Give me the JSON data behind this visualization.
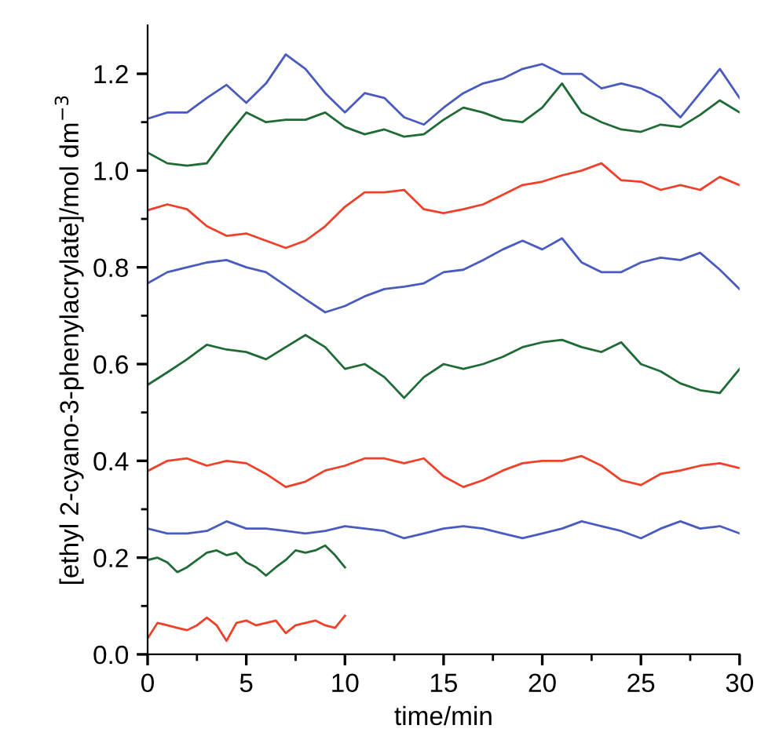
{
  "chart_data": {
    "type": "line",
    "xlabel": "time/min",
    "ylabel": "[ethyl 2-cyano-3-phenylacrylate]/mol dm$^{−3}$",
    "x": [
      0,
      1,
      2,
      3,
      4,
      5,
      6,
      7,
      8,
      9,
      10,
      11,
      12,
      13,
      14,
      15,
      16,
      17,
      18,
      19,
      20,
      21,
      22,
      23,
      24,
      25,
      26,
      27,
      28,
      29,
      30
    ],
    "series": [
      {
        "color": "#4a5bbf",
        "values": [
          1.107,
          1.12,
          1.12,
          1.15,
          1.177,
          1.14,
          1.18,
          1.24,
          1.21,
          1.16,
          1.12,
          1.16,
          1.15,
          1.11,
          1.095,
          1.13,
          1.16,
          1.18,
          1.19,
          1.21,
          1.22,
          1.2,
          1.2,
          1.17,
          1.18,
          1.17,
          1.15,
          1.11,
          1.16,
          1.21,
          1.15
        ]
      },
      {
        "color": "#1f6b35",
        "values": [
          1.037,
          1.015,
          1.01,
          1.015,
          1.07,
          1.12,
          1.1,
          1.105,
          1.105,
          1.12,
          1.09,
          1.075,
          1.085,
          1.07,
          1.075,
          1.105,
          1.13,
          1.12,
          1.105,
          1.1,
          1.13,
          1.18,
          1.12,
          1.1,
          1.085,
          1.08,
          1.095,
          1.09,
          1.115,
          1.145,
          1.12
        ]
      },
      {
        "color": "#f0402a",
        "values": [
          0.918,
          0.93,
          0.92,
          0.885,
          0.865,
          0.87,
          0.855,
          0.84,
          0.855,
          0.885,
          0.925,
          0.955,
          0.955,
          0.96,
          0.92,
          0.912,
          0.92,
          0.93,
          0.95,
          0.97,
          0.977,
          0.99,
          1.0,
          1.015,
          0.98,
          0.977,
          0.96,
          0.97,
          0.96,
          0.987,
          0.97
        ]
      },
      {
        "color": "#4a5bbf",
        "values": [
          0.767,
          0.79,
          0.8,
          0.81,
          0.815,
          0.8,
          0.79,
          0.762,
          0.734,
          0.707,
          0.72,
          0.74,
          0.755,
          0.76,
          0.767,
          0.79,
          0.795,
          0.815,
          0.837,
          0.855,
          0.837,
          0.86,
          0.81,
          0.79,
          0.79,
          0.81,
          0.82,
          0.815,
          0.83,
          0.795,
          0.755
        ]
      },
      {
        "color": "#1f6b35",
        "values": [
          0.557,
          0.583,
          0.61,
          0.64,
          0.63,
          0.625,
          0.61,
          0.635,
          0.66,
          0.635,
          0.59,
          0.6,
          0.573,
          0.53,
          0.573,
          0.6,
          0.59,
          0.6,
          0.615,
          0.635,
          0.645,
          0.65,
          0.635,
          0.625,
          0.645,
          0.6,
          0.585,
          0.56,
          0.546,
          0.54,
          0.59
        ]
      },
      {
        "color": "#f0402a",
        "values": [
          0.379,
          0.4,
          0.405,
          0.39,
          0.4,
          0.395,
          0.373,
          0.346,
          0.357,
          0.38,
          0.39,
          0.405,
          0.405,
          0.395,
          0.405,
          0.368,
          0.346,
          0.36,
          0.38,
          0.395,
          0.4,
          0.4,
          0.41,
          0.39,
          0.36,
          0.35,
          0.373,
          0.38,
          0.39,
          0.395,
          0.385
        ]
      },
      {
        "color": "#4a5bbf",
        "values": [
          0.26,
          0.25,
          0.25,
          0.255,
          0.275,
          0.26,
          0.26,
          0.255,
          0.25,
          0.255,
          0.265,
          0.26,
          0.255,
          0.24,
          0.25,
          0.26,
          0.265,
          0.26,
          0.25,
          0.24,
          0.25,
          0.26,
          0.275,
          0.265,
          0.255,
          0.24,
          0.26,
          0.275,
          0.26,
          0.265,
          0.25
        ]
      },
      {
        "color": "#1f6b35",
        "x": [
          0,
          0.5,
          1,
          1.5,
          2,
          2.5,
          3,
          3.5,
          4,
          4.5,
          5,
          5.5,
          6,
          6.5,
          7,
          7.5,
          8,
          8.5,
          9,
          9.5,
          10
        ],
        "values": [
          0.195,
          0.2,
          0.19,
          0.17,
          0.18,
          0.195,
          0.21,
          0.215,
          0.205,
          0.21,
          0.19,
          0.18,
          0.163,
          0.18,
          0.195,
          0.215,
          0.21,
          0.215,
          0.225,
          0.205,
          0.18
        ]
      },
      {
        "color": "#f0402a",
        "x": [
          0,
          0.5,
          1,
          1.5,
          2,
          2.5,
          3,
          3.5,
          4,
          4.5,
          5,
          5.5,
          6,
          6.5,
          7,
          7.5,
          8,
          8.5,
          9,
          9.5,
          10
        ],
        "values": [
          0.033,
          0.065,
          0.06,
          0.055,
          0.05,
          0.06,
          0.076,
          0.06,
          0.028,
          0.065,
          0.07,
          0.06,
          0.065,
          0.07,
          0.044,
          0.06,
          0.065,
          0.07,
          0.06,
          0.055,
          0.08
        ]
      }
    ],
    "xlim": [
      0,
      30
    ],
    "ylim": [
      0,
      1.3
    ],
    "xticks": [
      0,
      {
        "value": 2.5,
        "label": null
      },
      5,
      {
        "value": 7.5,
        "label": null
      },
      10,
      {
        "value": 12.5,
        "label": null
      },
      15,
      {
        "value": 17.5,
        "label": null
      },
      20,
      {
        "value": 22.5,
        "label": null
      },
      25,
      {
        "value": 27.5,
        "label": null
      },
      30
    ],
    "yticks": [
      {
        "value": 0,
        "label": "0.0"
      },
      {
        "value": 0.1,
        "label": null
      },
      {
        "value": 0.2,
        "label": "0.2"
      },
      {
        "value": 0.3,
        "label": null
      },
      {
        "value": 0.4,
        "label": "0.4"
      },
      {
        "value": 0.5,
        "label": null
      },
      {
        "value": 0.6,
        "label": "0.6"
      },
      {
        "value": 0.7,
        "label": null
      },
      {
        "value": 0.8,
        "label": "0.8"
      },
      {
        "value": 0.9,
        "label": null
      },
      {
        "value": 1.0,
        "label": "1.0"
      },
      {
        "value": 1.1,
        "label": null
      },
      {
        "value": 1.2,
        "label": "1.2"
      }
    ],
    "grid": false,
    "legend": false,
    "marker": "none",
    "line_style": "solid"
  }
}
